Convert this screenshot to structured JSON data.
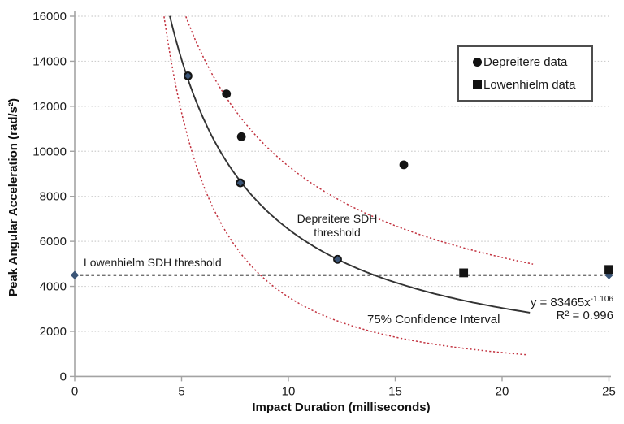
{
  "axes": {
    "xlabel": "Impact Duration (milliseconds)",
    "ylabel": "Peak Angular Acceleration (rad/s²)"
  },
  "legend": {
    "items": [
      {
        "label": "Depreitere data",
        "marker": "circle"
      },
      {
        "label": "Lowenhielm data",
        "marker": "square"
      }
    ]
  },
  "annotations": {
    "depreitere_threshold": {
      "line1": "Depreitere SDH",
      "line2": "threshold"
    },
    "lowenhielm_threshold": {
      "text": "Lowenhielm SDH threshold"
    },
    "confidence_interval": {
      "text": "75% Confidence Interval",
      "color": "#c2323f"
    },
    "equation": {
      "base": "y = 83465x",
      "exponent": "-1.106",
      "r_squared": "R² = 0.996"
    }
  },
  "colors": {
    "points": "#141414",
    "fit_curve": "#333333",
    "ci_curve": "#c2323f",
    "threshold_line": "#1f1f1f",
    "diamond_accent": "#3b5577",
    "gridline": "#cdcdcd",
    "spine": "#a3a3a3"
  },
  "chart_data": {
    "type": "scatter",
    "title": "",
    "xlabel": "Impact Duration (milliseconds)",
    "ylabel": "Peak Angular Acceleration (rad/s²)",
    "xlim": [
      0,
      25
    ],
    "ylim": [
      0,
      16000
    ],
    "xticks": [
      0,
      5,
      10,
      15,
      20,
      25
    ],
    "yticks": [
      0,
      2000,
      4000,
      6000,
      8000,
      10000,
      12000,
      14000,
      16000
    ],
    "grid": "horizontal-dotted",
    "legend_position": "top-right",
    "series": [
      {
        "name": "Depreitere data",
        "kind": "scatter",
        "marker": "circle",
        "color": "#141414",
        "points": [
          [
            5.3,
            13350
          ],
          [
            7.1,
            12550
          ],
          [
            7.8,
            10650
          ],
          [
            7.75,
            8600
          ],
          [
            12.3,
            5200
          ],
          [
            15.4,
            9400
          ]
        ]
      },
      {
        "name": "Lowenhielm data",
        "kind": "scatter",
        "marker": "square",
        "color": "#141414",
        "points": [
          [
            18.2,
            4600
          ],
          [
            25,
            4750
          ]
        ]
      },
      {
        "name": "Depreitere SDH threshold (power fit)",
        "kind": "power_curve",
        "A": 83465,
        "b": -1.106,
        "x_range": [
          4.45,
          21.3
        ],
        "color": "#333333",
        "style": "solid",
        "equation": "y = 83465x^-1.106",
        "r2": 0.996
      },
      {
        "name": "75% CI upper bound",
        "kind": "power_curve",
        "A": 62000,
        "b": -0.822,
        "x_range": [
          5.2,
          21.45
        ],
        "color": "#c2323f",
        "style": "dotted"
      },
      {
        "name": "75% CI lower bound",
        "kind": "power_curve",
        "A": 190700,
        "b": -1.733,
        "x_range": [
          4.18,
          21.15
        ],
        "color": "#c2323f",
        "style": "dotted"
      },
      {
        "name": "Lowenhielm SDH threshold",
        "kind": "hline",
        "y": 4500,
        "x_range": [
          0,
          25
        ],
        "color": "#1f1f1f",
        "style": "dashed",
        "endpoint_marker": "diamond",
        "endpoint_color": "#3b5577"
      }
    ],
    "fit_point_overlay": {
      "marker": "diamond",
      "color": "#3b5577",
      "points": [
        [
          5.3,
          13350
        ],
        [
          7.75,
          8600
        ],
        [
          12.3,
          5200
        ]
      ]
    }
  }
}
